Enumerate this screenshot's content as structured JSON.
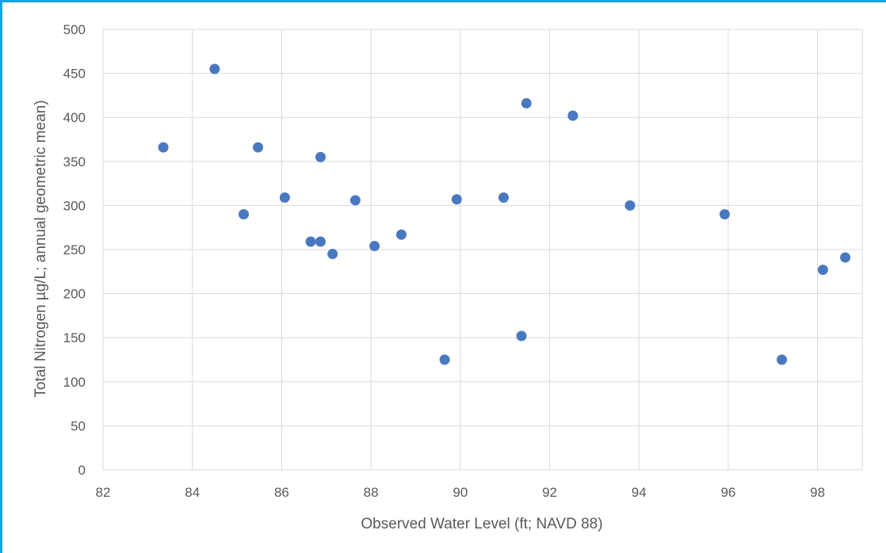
{
  "chart_data": {
    "type": "scatter",
    "title": "",
    "xlabel": "Observed Water Level (ft; NAVD 88)",
    "ylabel": "Total Nitrogen µg/L; annual geometric mean)",
    "xlim": [
      82,
      99
    ],
    "ylim": [
      0,
      500
    ],
    "x_ticks": [
      "82",
      "84",
      "86",
      "88",
      "90",
      "92",
      "94",
      "96",
      "98"
    ],
    "y_ticks": [
      "0",
      "50",
      "100",
      "150",
      "200",
      "250",
      "300",
      "350",
      "400",
      "450",
      "500"
    ],
    "grid": true,
    "legend": "none",
    "marker_color": "#4a78c0",
    "gridline_color": "#d9d9d9",
    "frame_color": "#1ba1e2",
    "series": [
      {
        "points": [
          {
            "x": 83.35,
            "y": 366
          },
          {
            "x": 84.5,
            "y": 455
          },
          {
            "x": 85.15,
            "y": 290
          },
          {
            "x": 85.47,
            "y": 366
          },
          {
            "x": 86.07,
            "y": 309
          },
          {
            "x": 86.65,
            "y": 259
          },
          {
            "x": 86.87,
            "y": 259
          },
          {
            "x": 86.87,
            "y": 355
          },
          {
            "x": 87.14,
            "y": 245
          },
          {
            "x": 87.65,
            "y": 306
          },
          {
            "x": 88.08,
            "y": 254
          },
          {
            "x": 88.68,
            "y": 267
          },
          {
            "x": 89.65,
            "y": 125
          },
          {
            "x": 89.92,
            "y": 307
          },
          {
            "x": 90.97,
            "y": 309
          },
          {
            "x": 91.37,
            "y": 152
          },
          {
            "x": 91.48,
            "y": 416
          },
          {
            "x": 92.52,
            "y": 402
          },
          {
            "x": 93.8,
            "y": 300
          },
          {
            "x": 95.92,
            "y": 290
          },
          {
            "x": 97.2,
            "y": 125
          },
          {
            "x": 98.12,
            "y": 227
          },
          {
            "x": 98.62,
            "y": 241
          }
        ]
      }
    ]
  }
}
